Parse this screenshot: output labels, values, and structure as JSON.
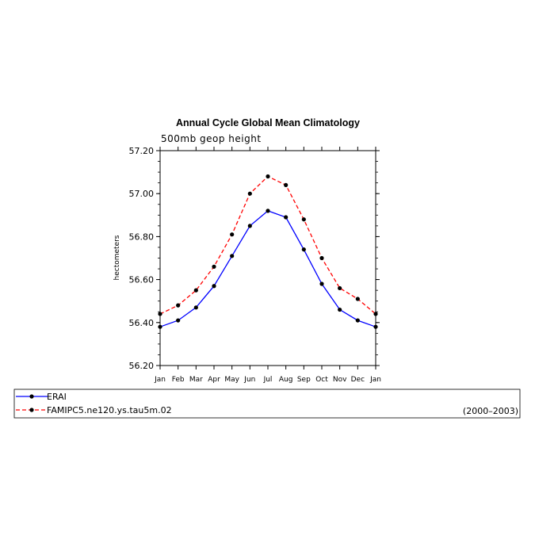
{
  "chart_data": {
    "type": "line",
    "title": "Annual Cycle Global Mean Climatology",
    "subtitle": "500mb geop height",
    "xlabel": "",
    "ylabel": "hectometers",
    "categories": [
      "Jan",
      "Feb",
      "Mar",
      "Apr",
      "May",
      "Jun",
      "Jul",
      "Aug",
      "Sep",
      "Oct",
      "Nov",
      "Dec",
      "Jan"
    ],
    "ylim": [
      56.2,
      57.2
    ],
    "yticks": [
      "56.20",
      "56.40",
      "56.60",
      "56.80",
      "57.00",
      "57.20"
    ],
    "series": [
      {
        "name": "ERAI",
        "color": "#0000ff",
        "dash": "solid",
        "values": [
          56.38,
          56.41,
          56.47,
          56.57,
          56.71,
          56.85,
          56.92,
          56.89,
          56.74,
          56.58,
          56.46,
          56.41,
          56.38
        ]
      },
      {
        "name": "FAMIPC5.ne120.ys.tau5m.02",
        "color": "#ff0000",
        "dash": "dashed",
        "values": [
          56.44,
          56.48,
          56.55,
          56.66,
          56.81,
          57.0,
          57.08,
          57.04,
          56.88,
          56.7,
          56.56,
          56.51,
          56.44
        ]
      }
    ],
    "legend_placement": "bottom",
    "period_label": "(2000–2003)",
    "grid": false
  }
}
